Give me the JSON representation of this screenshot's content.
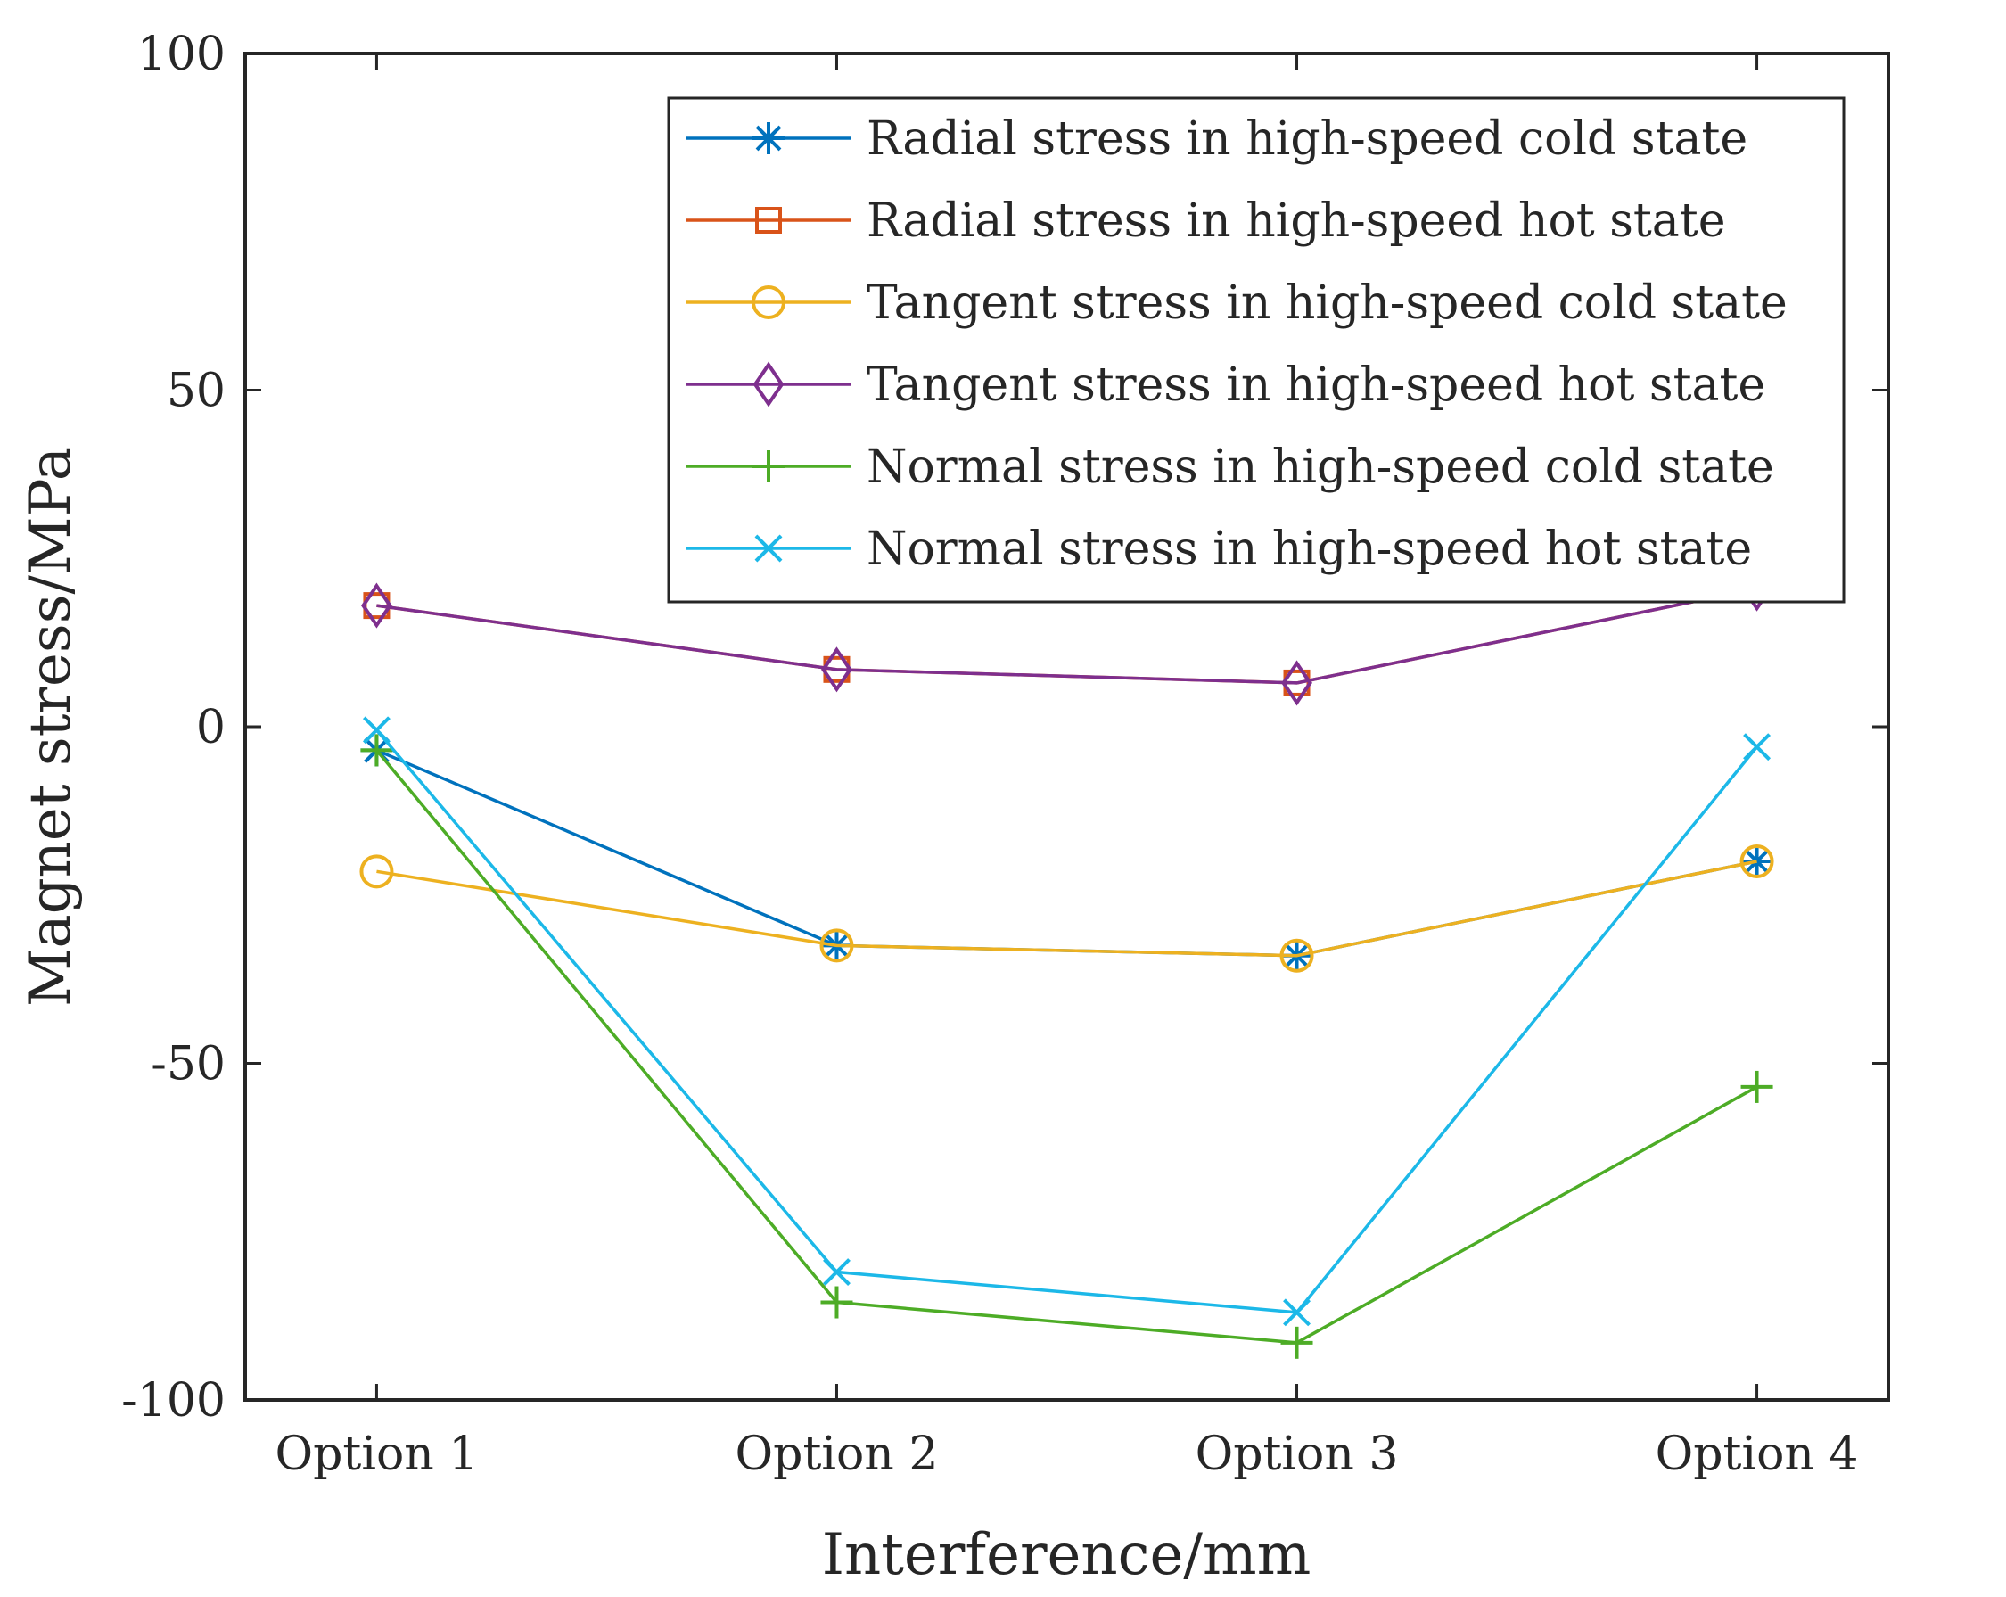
{
  "chart_data": {
    "type": "line",
    "title": "",
    "xlabel": "Interference/mm",
    "ylabel": "Magnet stress/MPa",
    "categories": [
      "Option 1",
      "Option 2",
      "Option 3",
      "Option 4"
    ],
    "ylim": [
      -100,
      100
    ],
    "yticks": [
      -100,
      -50,
      0,
      50,
      100
    ],
    "grid": false,
    "legend_position": "top-right",
    "series": [
      {
        "name": "Radial stress in high-speed cold state",
        "color": "#0072BD",
        "marker": "asterisk",
        "values": [
          -3.5,
          -32.5,
          -34,
          -20
        ]
      },
      {
        "name": "Radial stress in high-speed hot state",
        "color": "#D95319",
        "marker": "square",
        "values": [
          18,
          8.5,
          6.5,
          20.5
        ]
      },
      {
        "name": "Tangent stress in high-speed cold state",
        "color": "#EDB120",
        "marker": "circle",
        "values": [
          -21.5,
          -32.5,
          -34,
          -20
        ]
      },
      {
        "name": "Tangent stress in high-speed hot state",
        "color": "#7E2F8E",
        "marker": "diamond",
        "values": [
          18,
          8.5,
          6.5,
          20.5
        ]
      },
      {
        "name": "Normal stress in high-speed cold state",
        "color": "#4DAC26",
        "marker": "plus",
        "values": [
          -3.5,
          -85.5,
          -91.5,
          -53.5
        ]
      },
      {
        "name": "Normal stress in high-speed hot state",
        "color": "#1CB8E8",
        "marker": "cross",
        "values": [
          -0.5,
          -81,
          -87,
          -3
        ]
      }
    ]
  }
}
